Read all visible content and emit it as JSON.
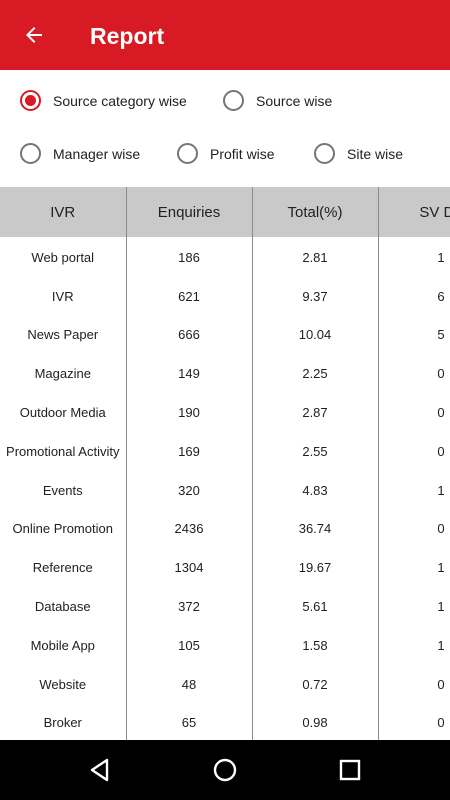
{
  "appbar": {
    "title": "Report",
    "back_icon": "arrow-left-icon"
  },
  "filters": {
    "options": [
      {
        "label": "Source category wise",
        "selected": true
      },
      {
        "label": "Source wise",
        "selected": false
      },
      {
        "label": "Manager wise",
        "selected": false
      },
      {
        "label": "Profit wise",
        "selected": false
      },
      {
        "label": "Site wise",
        "selected": false
      }
    ]
  },
  "table": {
    "headers": [
      "IVR",
      "Enquiries",
      "Total(%)",
      "SV Do"
    ],
    "rows": [
      [
        "Web portal",
        "186",
        "2.81",
        "1"
      ],
      [
        "IVR",
        "621",
        "9.37",
        "6"
      ],
      [
        "News Paper",
        "666",
        "10.04",
        "5"
      ],
      [
        "Magazine",
        "149",
        "2.25",
        "0"
      ],
      [
        "Outdoor Media",
        "190",
        "2.87",
        "0"
      ],
      [
        "Promotional Activity",
        "169",
        "2.55",
        "0"
      ],
      [
        "Events",
        "320",
        "4.83",
        "1"
      ],
      [
        "Online Promotion",
        "2436",
        "36.74",
        "0"
      ],
      [
        "Reference",
        "1304",
        "19.67",
        "1"
      ],
      [
        "Database",
        "372",
        "5.61",
        "1"
      ],
      [
        "Mobile App",
        "105",
        "1.58",
        "1"
      ],
      [
        "Website",
        "48",
        "0.72",
        "0"
      ],
      [
        "Broker",
        "65",
        "0.98",
        "0"
      ]
    ]
  },
  "colors": {
    "accent": "#d71a24",
    "header_bg": "#c9c9c9",
    "nav_bg": "#000000"
  },
  "navbar": {
    "icons": [
      "back-triangle-icon",
      "home-circle-icon",
      "recents-square-icon"
    ]
  }
}
